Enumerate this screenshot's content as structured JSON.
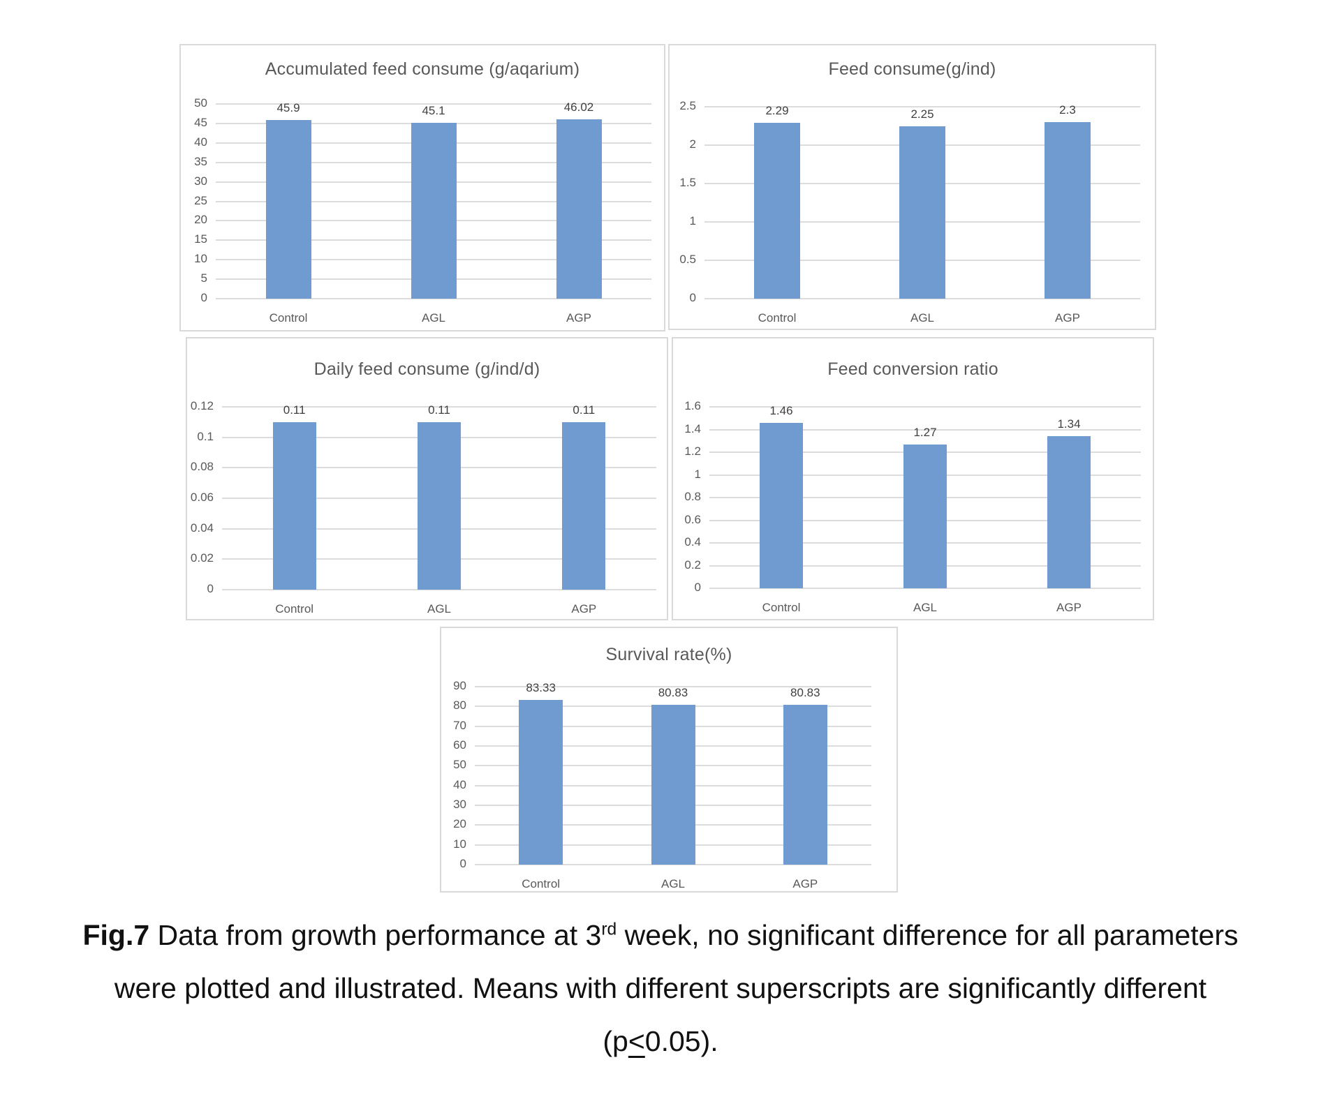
{
  "caption": {
    "fig_label": "Fig.7",
    "line1_before_sup": " Data from growth performance at 3",
    "sup": "rd",
    "line1_after_sup": " week, no significant difference for all parameters",
    "line2": "were plotted and illustrated. Means with different superscripts are significantly different",
    "line3_open": "(p",
    "line3_le": "<",
    "line3_close": "0.05)."
  },
  "colors": {
    "bar": "#6f9bd1",
    "grid": "#dcdcdc",
    "panel_border": "#d9d9d9",
    "chart_text": "#595959",
    "value_text": "#404040"
  },
  "chart_data": [
    {
      "type": "bar",
      "title": "Accumulated feed consume (g/aqarium)",
      "categories": [
        "Control",
        "AGL",
        "AGP"
      ],
      "values": [
        45.9,
        45.1,
        46.02
      ],
      "value_labels": [
        "45.9",
        "45.1",
        "46.02"
      ],
      "yticks": [
        "50",
        "45",
        "40",
        "35",
        "30",
        "25",
        "20",
        "15",
        "10",
        "5",
        "0"
      ],
      "ylim": [
        0,
        50
      ],
      "grid": true,
      "legend": "none"
    },
    {
      "type": "bar",
      "title": "Feed consume(g/ind)",
      "categories": [
        "Control",
        "AGL",
        "AGP"
      ],
      "values": [
        2.29,
        2.25,
        2.3
      ],
      "value_labels": [
        "2.29",
        "2.25",
        "2.3"
      ],
      "yticks": [
        "2.5",
        "2",
        "1.5",
        "1",
        "0.5",
        "0"
      ],
      "ylim": [
        0,
        2.5
      ],
      "grid": true,
      "legend": "none"
    },
    {
      "type": "bar",
      "title": "Daily feed consume (g/ind/d)",
      "categories": [
        "Control",
        "AGL",
        "AGP"
      ],
      "values": [
        0.11,
        0.11,
        0.11
      ],
      "value_labels": [
        "0.11",
        "0.11",
        "0.11"
      ],
      "yticks": [
        "0.12",
        "0.1",
        "0.08",
        "0.06",
        "0.04",
        "0.02",
        "0"
      ],
      "ylim": [
        0,
        0.12
      ],
      "grid": true,
      "legend": "none"
    },
    {
      "type": "bar",
      "title": "Feed conversion ratio",
      "categories": [
        "Control",
        "AGL",
        "AGP"
      ],
      "values": [
        1.46,
        1.27,
        1.34
      ],
      "value_labels": [
        "1.46",
        "1.27",
        "1.34"
      ],
      "yticks": [
        "1.6",
        "1.4",
        "1.2",
        "1",
        "0.8",
        "0.6",
        "0.4",
        "0.2",
        "0"
      ],
      "ylim": [
        0,
        1.6
      ],
      "grid": true,
      "legend": "none"
    },
    {
      "type": "bar",
      "title": "Survival rate(%)",
      "categories": [
        "Control",
        "AGL",
        "AGP"
      ],
      "values": [
        83.33,
        80.83,
        80.83
      ],
      "value_labels": [
        "83.33",
        "80.83",
        "80.83"
      ],
      "yticks": [
        "90",
        "80",
        "70",
        "60",
        "50",
        "40",
        "30",
        "20",
        "10",
        "0"
      ],
      "ylim": [
        0,
        90
      ],
      "grid": true,
      "legend": "none"
    }
  ]
}
